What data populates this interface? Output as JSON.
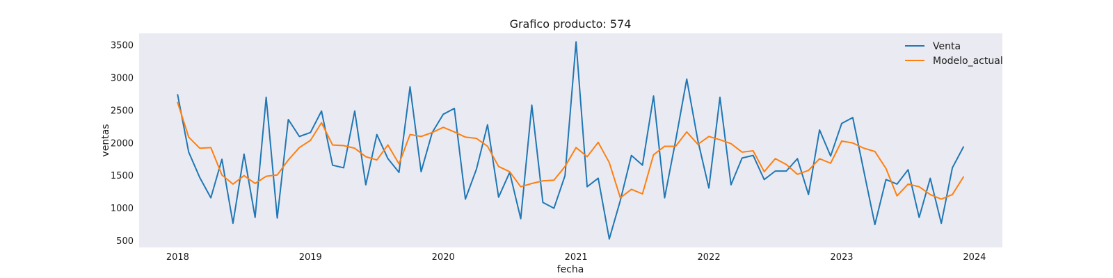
{
  "chart_data": {
    "type": "line",
    "title": "Grafico producto: 574",
    "xlabel": "fecha",
    "ylabel": "ventas",
    "xlim": [
      2017.71,
      2024.21
    ],
    "ylim": [
      400,
      3680
    ],
    "x_ticks": [
      2018,
      2019,
      2020,
      2021,
      2022,
      2023,
      2024
    ],
    "y_ticks": [
      500,
      1000,
      1500,
      2000,
      2500,
      3000,
      3500
    ],
    "grid": false,
    "legend_position": "top-right",
    "background_color": "#eaeaf2",
    "series": [
      {
        "name": "Venta",
        "color": "#1f77b4",
        "values": [
          2740,
          1860,
          1470,
          1160,
          1750,
          770,
          1830,
          860,
          2700,
          850,
          2360,
          2100,
          2160,
          2490,
          1660,
          1620,
          2490,
          1360,
          2130,
          1760,
          1550,
          2860,
          1560,
          2160,
          2440,
          2530,
          1140,
          1600,
          2280,
          1170,
          1550,
          840,
          2580,
          1090,
          1000,
          1500,
          3550,
          1330,
          1460,
          530,
          1120,
          1810,
          1660,
          2720,
          1160,
          2040,
          2980,
          2040,
          1310,
          2700,
          1360,
          1770,
          1810,
          1440,
          1570,
          1570,
          1760,
          1210,
          2200,
          1800,
          2300,
          2390,
          1570,
          750,
          1440,
          1370,
          1590,
          860,
          1460,
          770,
          1620,
          1940
        ]
      },
      {
        "name": "Modelo_actual",
        "color": "#ff7f0e",
        "values": [
          2620,
          2090,
          1920,
          1930,
          1510,
          1370,
          1500,
          1380,
          1490,
          1510,
          1740,
          1930,
          2040,
          2310,
          1970,
          1960,
          1920,
          1790,
          1740,
          1970,
          1680,
          2130,
          2100,
          2160,
          2240,
          2170,
          2090,
          2070,
          1950,
          1640,
          1560,
          1330,
          1380,
          1420,
          1430,
          1640,
          1930,
          1790,
          2010,
          1700,
          1160,
          1290,
          1220,
          1820,
          1950,
          1950,
          2170,
          1980,
          2100,
          2050,
          1990,
          1860,
          1880,
          1560,
          1760,
          1670,
          1520,
          1580,
          1760,
          1690,
          2030,
          2000,
          1920,
          1870,
          1610,
          1190,
          1370,
          1330,
          1210,
          1140,
          1210,
          1480
        ]
      }
    ]
  }
}
